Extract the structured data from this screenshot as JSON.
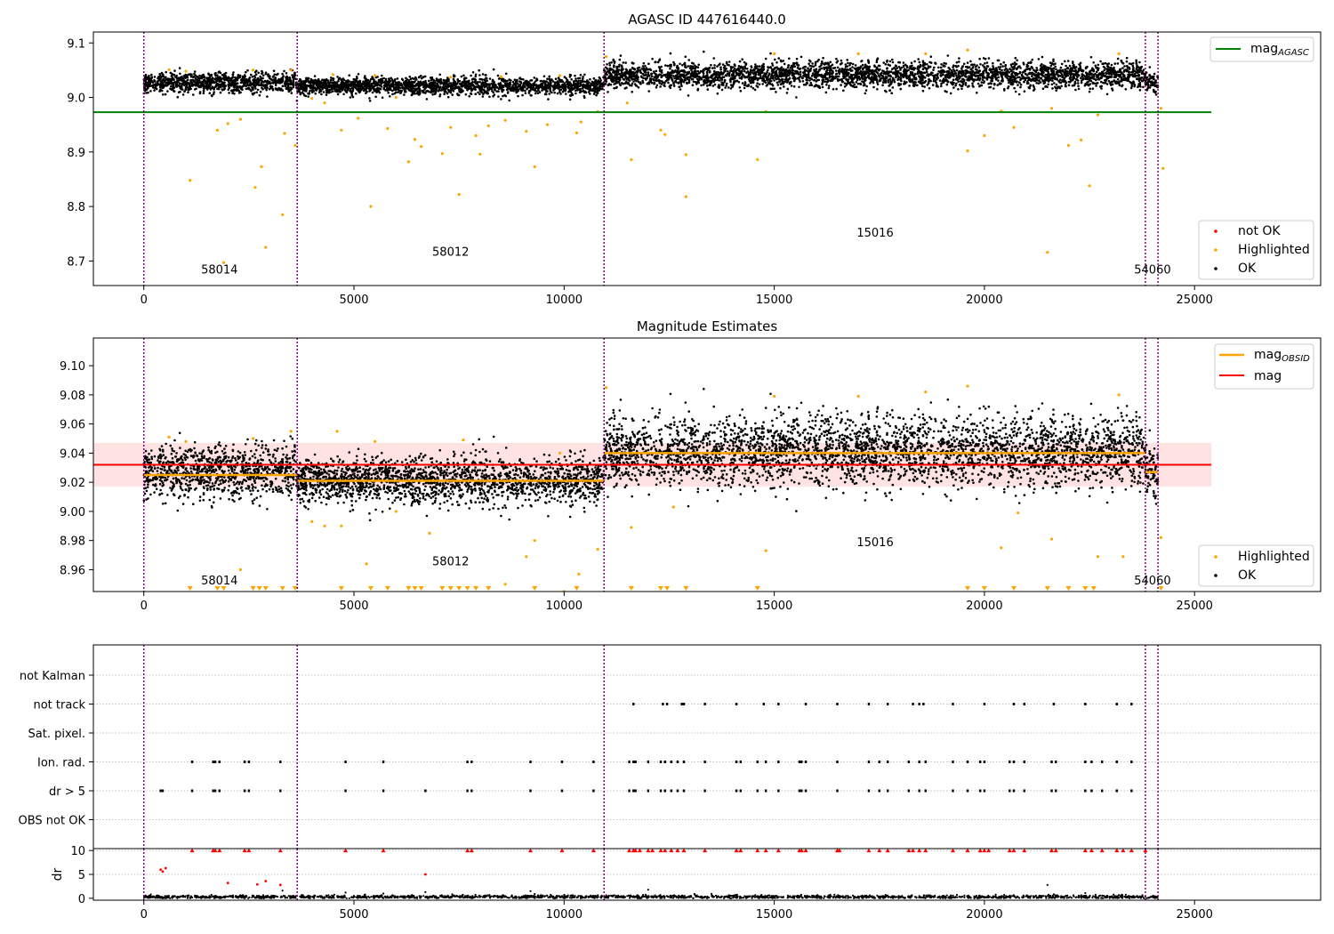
{
  "colors": {
    "ok": "#000000",
    "highlighted": "#ffa500",
    "not_ok": "#ff0000",
    "agasc_line": "#008000",
    "obsid_line": "#ffa500",
    "mag_line": "#ff0000",
    "mag_band": "#ffcccc",
    "obsid_boundary": "#800080",
    "grid": "#b0b0b0"
  },
  "chart_data": [
    {
      "type": "scatter",
      "title": "AGASC ID 447616440.0",
      "xlim": [
        -1200,
        28000
      ],
      "ylim": [
        8.655,
        9.12
      ],
      "xticks": [
        0,
        5000,
        10000,
        15000,
        20000,
        25000
      ],
      "xtick_labels": [
        "0",
        "5000",
        "10000",
        "15000",
        "20000",
        "25000"
      ],
      "yticks": [
        8.7,
        8.8,
        8.9,
        9.0,
        9.1
      ],
      "ytick_labels": [
        "8.7",
        "8.8",
        "8.9",
        "9.0",
        "9.1"
      ],
      "obsid_boundaries": [
        0,
        3650,
        10950,
        23830,
        24130
      ],
      "obsid_labels": [
        {
          "text": "58014",
          "x": 1800,
          "y": 8.677
        },
        {
          "text": "58012",
          "x": 7300,
          "y": 8.71
        },
        {
          "text": "15016",
          "x": 17400,
          "y": 8.745
        },
        {
          "text": "54060",
          "x": 24000,
          "y": 8.677
        }
      ],
      "agasc_mag": {
        "value": 8.973,
        "x_range": [
          -1200,
          25400
        ]
      },
      "ok_segments": [
        {
          "x": [
            0,
            3650
          ],
          "mean": 9.027,
          "spread": 0.018
        },
        {
          "x": [
            3650,
            10950
          ],
          "mean": 9.021,
          "spread": 0.016
        },
        {
          "x": [
            10950,
            23830
          ],
          "mean": 9.041,
          "spread": 0.024
        },
        {
          "x": [
            23830,
            24130
          ],
          "mean": 9.027,
          "spread": 0.018
        }
      ],
      "highlighted_points": [
        [
          1100,
          8.848
        ],
        [
          1750,
          8.94
        ],
        [
          1900,
          8.697
        ],
        [
          2000,
          8.952
        ],
        [
          2300,
          8.96
        ],
        [
          2650,
          8.835
        ],
        [
          2800,
          8.873
        ],
        [
          2900,
          8.725
        ],
        [
          3300,
          8.785
        ],
        [
          3350,
          8.934
        ],
        [
          3600,
          8.912
        ],
        [
          5400,
          8.8
        ],
        [
          5100,
          8.962
        ],
        [
          4700,
          8.94
        ],
        [
          5800,
          8.943
        ],
        [
          6300,
          8.882
        ],
        [
          6450,
          8.923
        ],
        [
          6600,
          8.91
        ],
        [
          7100,
          8.897
        ],
        [
          7500,
          8.822
        ],
        [
          7300,
          8.945
        ],
        [
          7900,
          8.93
        ],
        [
          8000,
          8.896
        ],
        [
          8200,
          8.948
        ],
        [
          8600,
          8.958
        ],
        [
          9100,
          8.938
        ],
        [
          9300,
          8.873
        ],
        [
          9600,
          8.95
        ],
        [
          10300,
          8.935
        ],
        [
          10400,
          8.955
        ],
        [
          10800,
          8.974
        ],
        [
          11600,
          8.886
        ],
        [
          12300,
          8.94
        ],
        [
          12400,
          8.932
        ],
        [
          12900,
          8.895
        ],
        [
          12900,
          8.818
        ],
        [
          14600,
          8.886
        ],
        [
          14800,
          8.974
        ],
        [
          19600,
          8.902
        ],
        [
          20000,
          8.93
        ],
        [
          20400,
          8.975
        ],
        [
          20700,
          8.945
        ],
        [
          21500,
          8.716
        ],
        [
          21600,
          8.98
        ],
        [
          22000,
          8.912
        ],
        [
          22300,
          8.922
        ],
        [
          22500,
          8.838
        ],
        [
          22700,
          8.968
        ],
        [
          24200,
          8.98
        ],
        [
          24250,
          8.87
        ],
        [
          600,
          9.051
        ],
        [
          1000,
          9.048
        ],
        [
          2600,
          9.05
        ],
        [
          3500,
          9.05
        ],
        [
          4500,
          9.042
        ],
        [
          5500,
          9.04
        ],
        [
          7300,
          9.037
        ],
        [
          8500,
          9.038
        ],
        [
          9900,
          9.04
        ],
        [
          11000,
          9.075
        ],
        [
          15000,
          9.08
        ],
        [
          17000,
          9.08
        ],
        [
          18600,
          9.08
        ],
        [
          19600,
          9.087
        ],
        [
          23200,
          9.08
        ],
        [
          4000,
          8.998
        ],
        [
          4300,
          8.99
        ],
        [
          6000,
          9.0
        ],
        [
          11500,
          8.99
        ]
      ],
      "legend": {
        "entries": [
          "mag_AGASC"
        ],
        "position": "upper right"
      },
      "legend_lower": {
        "entries": [
          "not OK",
          "Highlighted",
          "OK"
        ],
        "position": "lower right"
      }
    },
    {
      "type": "scatter",
      "title": "Magnitude Estimates",
      "xlim": [
        -1200,
        28000
      ],
      "ylim": [
        8.945,
        9.119
      ],
      "xticks": [
        0,
        5000,
        10000,
        15000,
        20000,
        25000
      ],
      "xtick_labels": [
        "0",
        "5000",
        "10000",
        "15000",
        "20000",
        "25000"
      ],
      "yticks": [
        8.96,
        8.98,
        9.0,
        9.02,
        9.04,
        9.06,
        9.08,
        9.1
      ],
      "ytick_labels": [
        "8.96",
        "8.98",
        "9.00",
        "9.02",
        "9.04",
        "9.06",
        "9.08",
        "9.10"
      ],
      "obsid_boundaries": [
        0,
        3650,
        10950,
        23830,
        24130
      ],
      "obsid_labels": [
        {
          "text": "58014",
          "x": 1800,
          "y": 8.95
        },
        {
          "text": "58012",
          "x": 7300,
          "y": 8.963
        },
        {
          "text": "15016",
          "x": 17400,
          "y": 8.976
        },
        {
          "text": "54060",
          "x": 24000,
          "y": 8.95
        }
      ],
      "mag": {
        "value": 9.032,
        "band": [
          9.017,
          9.047
        ],
        "x_range": [
          -1200,
          25400
        ]
      },
      "mag_obsid": [
        {
          "x": [
            0,
            3650
          ],
          "value": 9.025
        },
        {
          "x": [
            3650,
            10950
          ],
          "value": 9.021
        },
        {
          "x": [
            10950,
            23830
          ],
          "value": 9.04
        },
        {
          "x": [
            23830,
            24130
          ],
          "value": 9.027
        }
      ],
      "ok_segments": [
        {
          "x": [
            0,
            3650
          ],
          "mean": 9.027,
          "spread": 0.018
        },
        {
          "x": [
            3650,
            10950
          ],
          "mean": 9.021,
          "spread": 0.016
        },
        {
          "x": [
            10950,
            23830
          ],
          "mean": 9.041,
          "spread": 0.024
        },
        {
          "x": [
            23830,
            24130
          ],
          "mean": 9.027,
          "spread": 0.018
        }
      ],
      "highlighted_points": [
        [
          2300,
          8.96
        ],
        [
          4700,
          8.99
        ],
        [
          5300,
          8.964
        ],
        [
          6800,
          8.985
        ],
        [
          8600,
          8.95
        ],
        [
          9300,
          8.98
        ],
        [
          9100,
          8.969
        ],
        [
          10000,
          8.945
        ],
        [
          10350,
          8.957
        ],
        [
          10800,
          8.974
        ],
        [
          11600,
          8.989
        ],
        [
          14800,
          8.973
        ],
        [
          20400,
          8.975
        ],
        [
          20800,
          8.999
        ],
        [
          21600,
          8.981
        ],
        [
          22700,
          8.969
        ],
        [
          23300,
          8.969
        ],
        [
          24200,
          8.982
        ],
        [
          600,
          9.051
        ],
        [
          1000,
          9.048
        ],
        [
          2600,
          9.05
        ],
        [
          3500,
          9.055
        ],
        [
          4600,
          9.055
        ],
        [
          5500,
          9.048
        ],
        [
          7600,
          9.049
        ],
        [
          9900,
          9.04
        ],
        [
          11000,
          9.085
        ],
        [
          15000,
          9.079
        ],
        [
          17000,
          9.079
        ],
        [
          18600,
          9.082
        ],
        [
          19600,
          9.086
        ],
        [
          23200,
          9.08
        ],
        [
          4000,
          8.993
        ],
        [
          4300,
          8.99
        ],
        [
          6000,
          9.0
        ],
        [
          12600,
          9.003
        ]
      ],
      "clipped_below_x": [
        1100,
        1750,
        1900,
        2600,
        2750,
        2900,
        3300,
        3600,
        4700,
        5400,
        5800,
        6300,
        6450,
        6600,
        7100,
        7300,
        7500,
        7700,
        7900,
        8200,
        9300,
        10300,
        11600,
        12300,
        12450,
        12900,
        14600,
        19600,
        20000,
        20700,
        21500,
        22000,
        22400,
        22600,
        24200
      ],
      "legend": {
        "entries": [
          "mag_OBSID",
          "mag"
        ],
        "position": "upper right"
      },
      "legend_lower": {
        "entries": [
          "Highlighted",
          "OK"
        ],
        "position": "lower right"
      }
    },
    {
      "type": "scatter",
      "title": "",
      "xlim": [
        -1200,
        28000
      ],
      "categories": [
        "not Kalman",
        "not track",
        "Sat. pixel.",
        "Ion. rad.",
        "dr > 5",
        "OBS not OK"
      ],
      "obsid_boundaries": [
        0,
        3650,
        10950,
        23830,
        24130
      ],
      "flags": {
        "not track": [
          11650,
          12350,
          12450,
          12800,
          12850,
          13350,
          14100,
          14750,
          15100,
          15750,
          16500,
          17250,
          17700,
          18300,
          18450,
          18550,
          19250,
          20000,
          20700,
          20950,
          21650,
          22400,
          23150,
          23500
        ],
        "Ion. rad.": [
          1150,
          1650,
          1700,
          1800,
          2400,
          2500,
          3250,
          4800,
          5700,
          7700,
          7800,
          9200,
          9950,
          10700,
          11550,
          11650,
          11700,
          12000,
          12300,
          12400,
          12550,
          12700,
          12850,
          13350,
          14100,
          14200,
          14600,
          14800,
          15100,
          15600,
          15650,
          15750,
          16500,
          17250,
          17500,
          17700,
          18200,
          18450,
          18600,
          19250,
          19600,
          19900,
          20000,
          20600,
          20700,
          20950,
          21600,
          21700,
          22400,
          22550,
          22800,
          23150,
          23500
        ],
        "dr > 5": [
          400,
          450,
          1150,
          1650,
          1700,
          1800,
          2400,
          2500,
          3250,
          4800,
          5700,
          6700,
          7700,
          7800,
          9200,
          9950,
          10700,
          11550,
          11650,
          11700,
          12000,
          12300,
          12400,
          12550,
          12700,
          12850,
          13350,
          14100,
          14200,
          14600,
          14800,
          15100,
          15600,
          15650,
          15750,
          16500,
          17250,
          17500,
          17700,
          18200,
          18450,
          18600,
          19250,
          19600,
          19900,
          20000,
          20600,
          20700,
          20950,
          21600,
          21700,
          22400,
          22550,
          22800,
          23150,
          23500
        ]
      }
    },
    {
      "type": "scatter",
      "title": "",
      "xlim": [
        -1200,
        28000
      ],
      "ylim": [
        -0.4,
        10.4
      ],
      "ylabel": "dr",
      "xticks": [
        0,
        5000,
        10000,
        15000,
        20000,
        25000
      ],
      "xtick_labels": [
        "0",
        "5000",
        "10000",
        "15000",
        "20000",
        "25000"
      ],
      "yticks": [
        0,
        5,
        10
      ],
      "ytick_labels": [
        "0",
        "5",
        "10"
      ],
      "obsid_boundaries": [
        0,
        3650,
        10950,
        23830,
        24130
      ],
      "baseline_ok": {
        "x": [
          0,
          24130
        ],
        "mean": 0.3,
        "spread": 0.35
      },
      "ok_points": [
        [
          4800,
          1.2
        ],
        [
          5700,
          1.0
        ],
        [
          6700,
          1.3
        ],
        [
          9200,
          1.5
        ],
        [
          12000,
          1.8
        ],
        [
          13100,
          0.9
        ],
        [
          21500,
          2.8
        ],
        [
          22400,
          1.1
        ],
        [
          9300,
          0.9
        ],
        [
          3300,
          1.6
        ]
      ],
      "not_ok_points": [
        [
          400,
          6.0
        ],
        [
          450,
          5.6
        ],
        [
          520,
          6.3
        ],
        [
          2000,
          3.2
        ],
        [
          2700,
          2.9
        ],
        [
          2900,
          3.6
        ],
        [
          3250,
          2.8
        ],
        [
          6700,
          5.0
        ]
      ],
      "not_ok_clipped_x": [
        1150,
        1650,
        1700,
        1800,
        2400,
        2500,
        3250,
        4800,
        5700,
        7700,
        7800,
        9200,
        9950,
        10700,
        11550,
        11650,
        11700,
        11800,
        12000,
        12100,
        12300,
        12400,
        12550,
        12700,
        12850,
        13350,
        14100,
        14200,
        14600,
        14800,
        15100,
        15600,
        15650,
        15750,
        16500,
        16550,
        17250,
        17500,
        17700,
        18200,
        18300,
        18450,
        18600,
        19250,
        19600,
        19900,
        20000,
        20100,
        20600,
        20700,
        20950,
        21600,
        21700,
        22400,
        22550,
        22800,
        23150,
        23300,
        23500,
        23830
      ]
    }
  ]
}
